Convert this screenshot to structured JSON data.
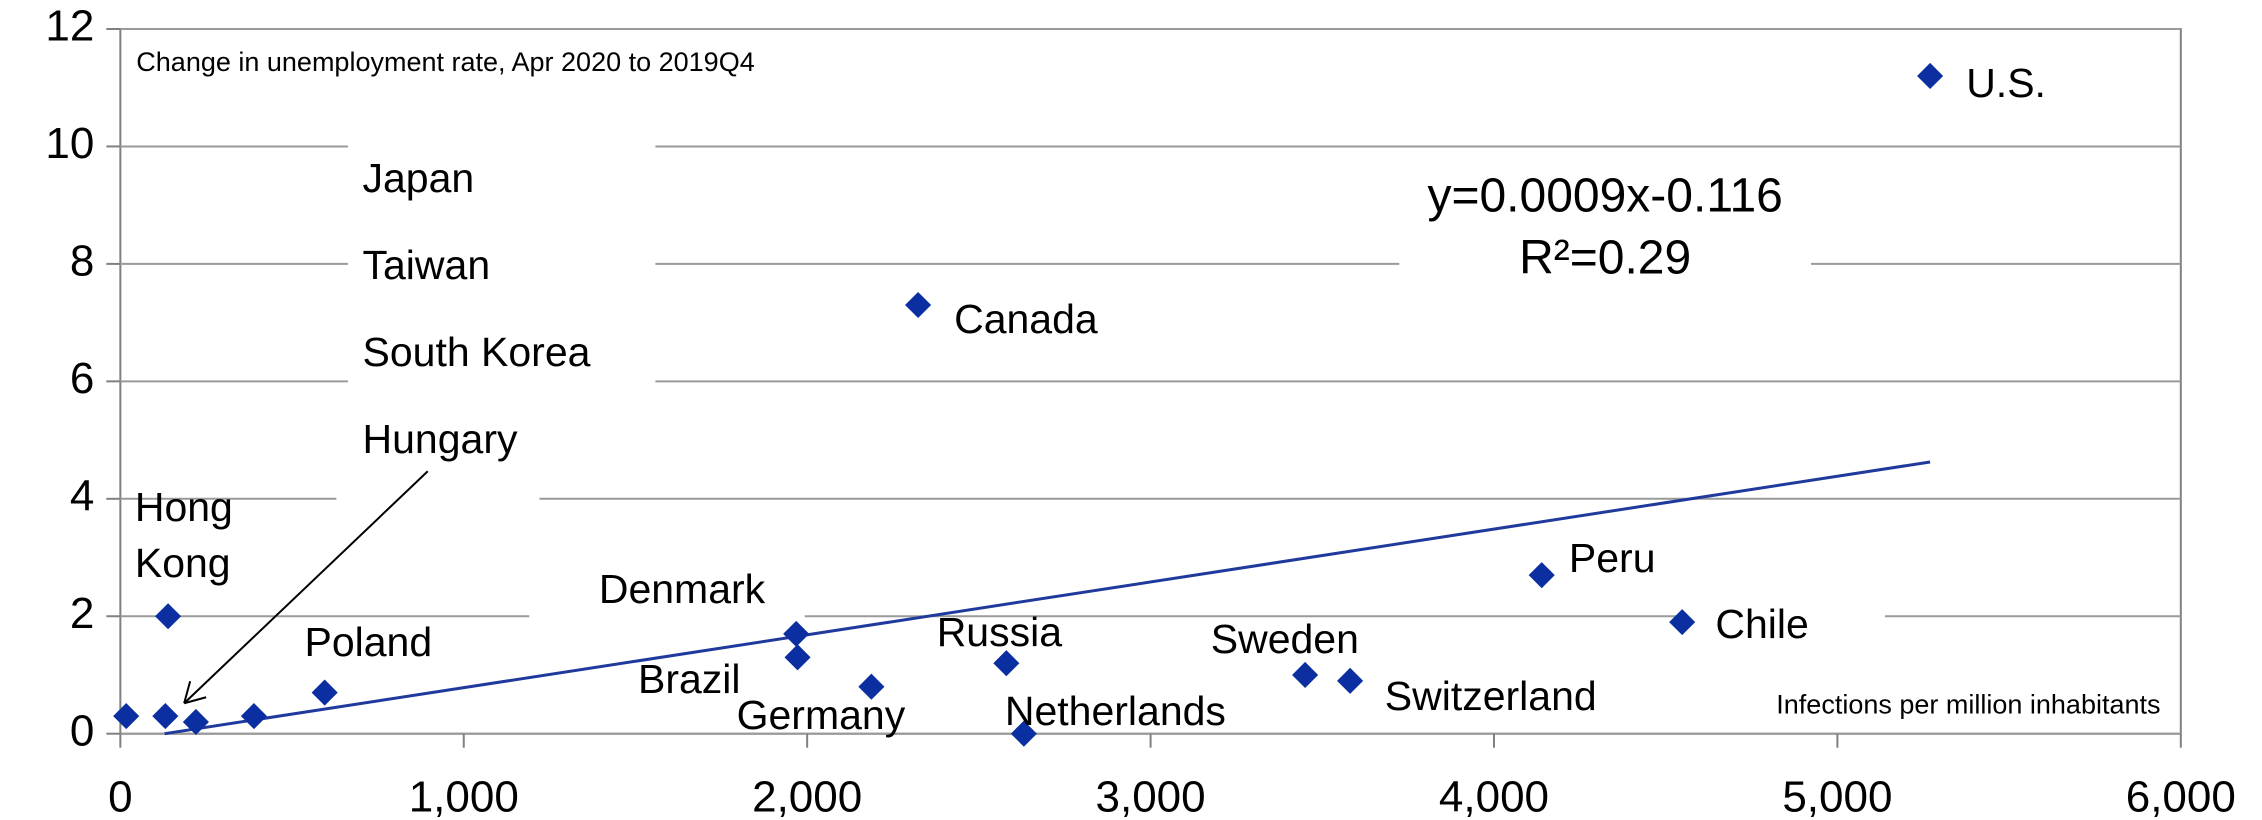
{
  "chart_data": {
    "type": "scatter",
    "ylabel": "Change in unemployment rate, Apr 2020 to 2019Q4",
    "xlabel": "Infections per million inhabitants",
    "color": "#0b2fa0",
    "x": [
      5270,
      2323,
      4139,
      4548,
      139,
      1968,
      1972,
      2187,
      2580,
      2631,
      3450,
      3581,
      595,
      17,
      131,
      220,
      389
    ],
    "values": [
      11.2,
      7.3,
      2.7,
      1.9,
      2.0,
      1.7,
      1.3,
      0.8,
      1.2,
      0.0,
      1.0,
      0.9,
      0.7,
      0.3,
      0.3,
      0.2,
      0.3
    ],
    "labels": [
      "U.S.",
      "Canada",
      "Peru",
      "Chile",
      "Hong Kong",
      "Denmark",
      "Brazil",
      "Germany",
      "Russia",
      "Netherlands",
      "Sweden",
      "Switzerland",
      "Poland",
      null,
      null,
      null,
      null
    ],
    "annotation_labels": [
      "Japan",
      "Taiwan",
      "South Korea",
      "Hungary"
    ],
    "trendline": {
      "equation": "y=0.0009x-0.116",
      "r2_label": "R²=0.29",
      "slope": 0.0009,
      "intercept": -0.116,
      "color": "#1f3a9c"
    },
    "xlim": [
      0,
      6000
    ],
    "xticks": [
      0,
      {
        "value": 1000,
        "label": "1,000"
      },
      {
        "value": 2000,
        "label": "2,000"
      },
      {
        "value": 3000,
        "label": "3,000"
      },
      {
        "value": 4000,
        "label": "4,000"
      },
      {
        "value": 5000,
        "label": "5,000"
      },
      {
        "value": 6000,
        "label": "6,000"
      }
    ],
    "ylim": [
      0,
      12
    ],
    "yticks": [
      0,
      2,
      4,
      6,
      8,
      10,
      12
    ],
    "grid": true
  }
}
